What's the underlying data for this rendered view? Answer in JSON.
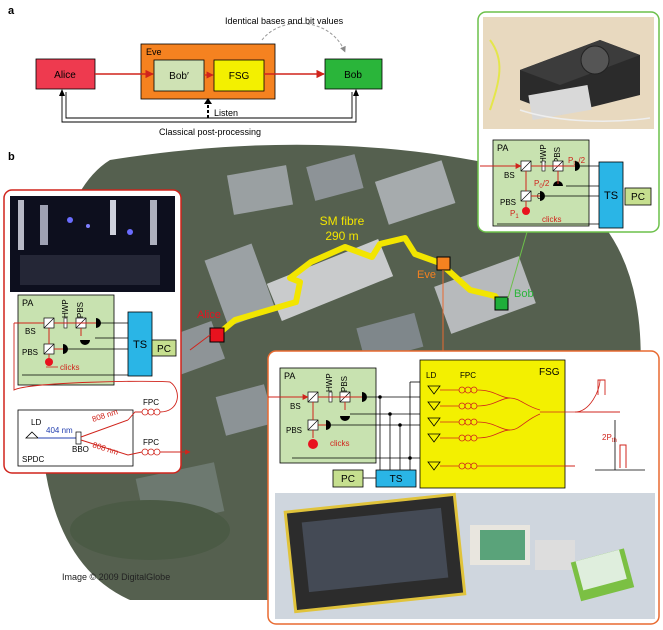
{
  "panel_a": {
    "letter": "a",
    "alice": "Alice",
    "eve": "Eve",
    "bob_prime": "Bob′",
    "fsg": "FSG",
    "bob": "Bob",
    "identical": "Identical bases and bit values",
    "listen": "Listen",
    "classical": "Classical post-processing"
  },
  "panel_b": {
    "letter": "b",
    "sm_fibre_line1": "SM fibre",
    "sm_fibre_line2": "290 m",
    "site_alice": "Alice",
    "site_eve": "Eve",
    "site_bob": "Bob",
    "credit": "Image © 2009 DigitalGlobe",
    "alice_box": {
      "pa": "PA",
      "hwp": "HWP",
      "pbs_top": "PBS",
      "bs": "BS",
      "pbs": "PBS",
      "clicks": "clicks",
      "ts": "TS",
      "pc": "PC",
      "ld": "LD",
      "nm404": "404 nm",
      "nm808a": "808 nm",
      "nm808b": "808 nm",
      "bbo": "BBO",
      "spdc": "SPDC",
      "fpc1": "FPC",
      "fpc2": "FPC"
    },
    "bob_box": {
      "pa": "PA",
      "hwp": "HWP",
      "pbs_top": "PBS",
      "bs": "BS",
      "pbs": "PBS",
      "pth_half": "P",
      "pth_sub": "th",
      "half": "/2",
      "p0": "P",
      "p0_sub": "0",
      "p0_half": "/2",
      "zero": "0",
      "p1": "P",
      "p1_sub": "1",
      "clicks": "clicks",
      "ts": "TS",
      "pc": "PC"
    },
    "eve_box": {
      "pa": "PA",
      "hwp": "HWP",
      "pbs_top": "PBS",
      "bs": "BS",
      "pbs": "PBS",
      "clicks": "clicks",
      "pc": "PC",
      "ts": "TS",
      "ld": "LD",
      "fpc": "FPC",
      "fsg": "FSG",
      "two_pth": "2P",
      "two_pth_sub": "th"
    }
  },
  "colors": {
    "alice": "#ee3a4f",
    "eve": "#f58220",
    "bob_prime": "#cfe2b4",
    "fsg": "#f3f000",
    "bob": "#2ab53a",
    "fibre": "#f2e500",
    "ts": "#2ab5e6",
    "pc": "#c6df8f",
    "pa": "#c8e2b0",
    "red": "#d0241c",
    "bob_frame": "#6cc04a",
    "alice_frame": "#d0241c",
    "eve_frame": "#e86a30"
  }
}
